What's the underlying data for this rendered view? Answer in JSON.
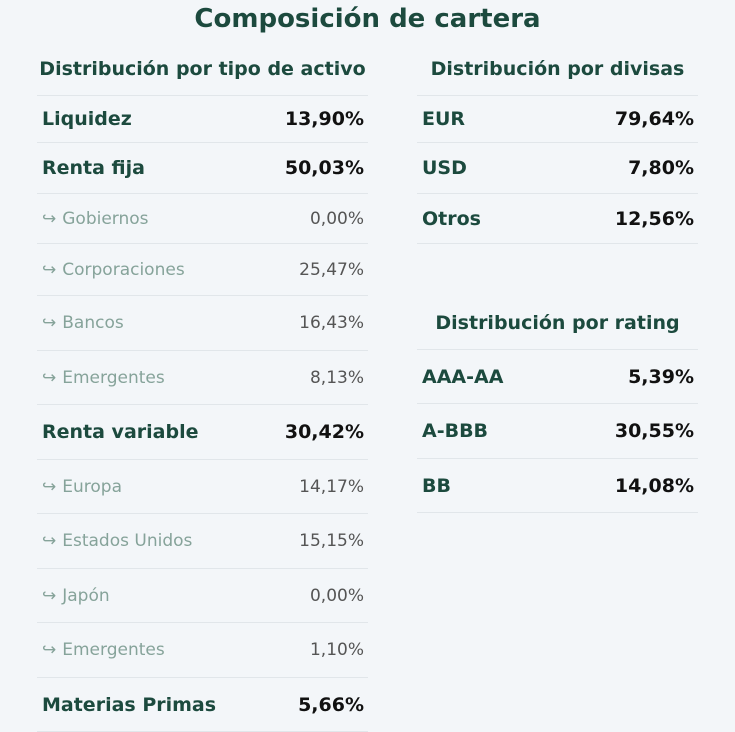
{
  "title": "Composición de cartera",
  "asset": {
    "heading": "Distribución por tipo de activo",
    "rows": [
      {
        "label": "Liquidez",
        "value": "13,90%",
        "sub": false
      },
      {
        "label": "Renta fija",
        "value": "50,03%",
        "sub": false
      },
      {
        "label": "Gobiernos",
        "value": "0,00%",
        "sub": true
      },
      {
        "label": "Corporaciones",
        "value": "25,47%",
        "sub": true
      },
      {
        "label": "Bancos",
        "value": "16,43%",
        "sub": true
      },
      {
        "label": "Emergentes",
        "value": "8,13%",
        "sub": true
      },
      {
        "label": "Renta variable",
        "value": "30,42%",
        "sub": false
      },
      {
        "label": "Europa",
        "value": "14,17%",
        "sub": true
      },
      {
        "label": "Estados Unidos",
        "value": "15,15%",
        "sub": true
      },
      {
        "label": "Japón",
        "value": "0,00%",
        "sub": true
      },
      {
        "label": "Emergentes",
        "value": "1,10%",
        "sub": true
      },
      {
        "label": "Materias Primas",
        "value": "5,66%",
        "sub": false
      }
    ]
  },
  "currency": {
    "heading": "Distribución por divisas",
    "rows": [
      {
        "label": "EUR",
        "value": "79,64%",
        "sub": false
      },
      {
        "label": "USD",
        "value": "7,80%",
        "sub": false
      },
      {
        "label": "Otros",
        "value": "12,56%",
        "sub": false
      }
    ]
  },
  "rating": {
    "heading": "Distribución por rating",
    "rows": [
      {
        "label": "AAA-AA",
        "value": "5,39%",
        "sub": false
      },
      {
        "label": "A-BBB",
        "value": "30,55%",
        "sub": false
      },
      {
        "label": "BB",
        "value": "14,08%",
        "sub": false
      }
    ]
  },
  "icons": {
    "sub_arrow": "↪"
  }
}
